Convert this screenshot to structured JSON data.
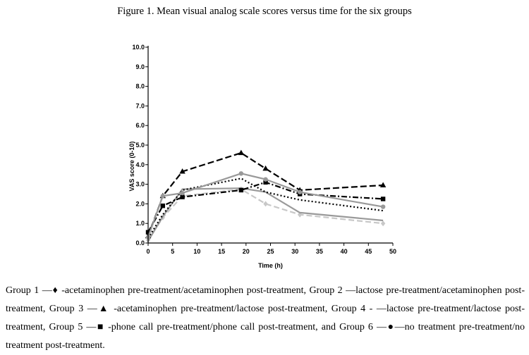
{
  "title": "Figure 1. Mean visual analog scale scores versus time for the six groups",
  "caption": "Group 1 —♦ -acetaminophen pre-treatment/acetaminophen post-treatment, Group 2 —lactose pre-treatment/acetaminophen post-treatment, Group 3 —▲ -acetaminophen pre-treatment/lactose post-treatment, Group 4 - —lactose pre-treatment/lactose post-treatment, Group 5 —■ -phone call pre-treatment/phone call post-treatment, and Group 6 —●—no treatment pre-treatment/no treatment post-treatment.",
  "chart_data": {
    "type": "line",
    "xlabel": "Time (h)",
    "ylabel": "VAS score (0-10)",
    "xlim": [
      0,
      50
    ],
    "ylim": [
      0,
      10
    ],
    "xticks": [
      0,
      5,
      10,
      15,
      20,
      25,
      30,
      35,
      40,
      45,
      50
    ],
    "yticks": [
      "0.0",
      "1.0",
      "2.0",
      "3.0",
      "4.0",
      "5.0",
      "6.0",
      "7.0",
      "8.0",
      "9.0",
      "10.0"
    ],
    "grid": false,
    "series": [
      {
        "name": "Group 1",
        "x": [
          0,
          3,
          7,
          19,
          24,
          31,
          48
        ],
        "y": [
          0.15,
          1.3,
          2.4,
          2.75,
          2.0,
          1.45,
          1.0
        ],
        "color": "#c8c8c8",
        "dash": "8,4",
        "marker": "diamond"
      },
      {
        "name": "Group 2",
        "x": [
          0,
          3,
          7,
          19,
          24,
          31,
          48
        ],
        "y": [
          0.1,
          1.35,
          2.75,
          2.8,
          2.6,
          1.55,
          1.15
        ],
        "color": "#9a9a9a",
        "dash": "",
        "marker": "none"
      },
      {
        "name": "Group 3",
        "x": [
          0,
          3,
          7,
          19,
          24,
          31,
          48
        ],
        "y": [
          0.35,
          2.4,
          3.65,
          4.6,
          3.8,
          2.7,
          2.95
        ],
        "color": "#000000",
        "dash": "9,4",
        "marker": "triangle"
      },
      {
        "name": "Group 4",
        "x": [
          0,
          3,
          7,
          19,
          24,
          31,
          48
        ],
        "y": [
          0.25,
          1.45,
          2.7,
          3.3,
          2.6,
          2.2,
          1.65
        ],
        "color": "#000000",
        "dash": "2,3",
        "marker": "none"
      },
      {
        "name": "Group 5",
        "x": [
          0,
          3,
          7,
          19,
          24,
          31,
          48
        ],
        "y": [
          0.55,
          1.9,
          2.35,
          2.7,
          3.1,
          2.5,
          2.25
        ],
        "color": "#000000",
        "dash": "8,3,2,3",
        "marker": "square"
      },
      {
        "name": "Group 6",
        "x": [
          0,
          3,
          7,
          19,
          24,
          31,
          48
        ],
        "y": [
          0.3,
          2.4,
          2.55,
          3.55,
          3.25,
          2.6,
          1.85
        ],
        "color": "#999999",
        "dash": "",
        "marker": "circle"
      }
    ]
  }
}
